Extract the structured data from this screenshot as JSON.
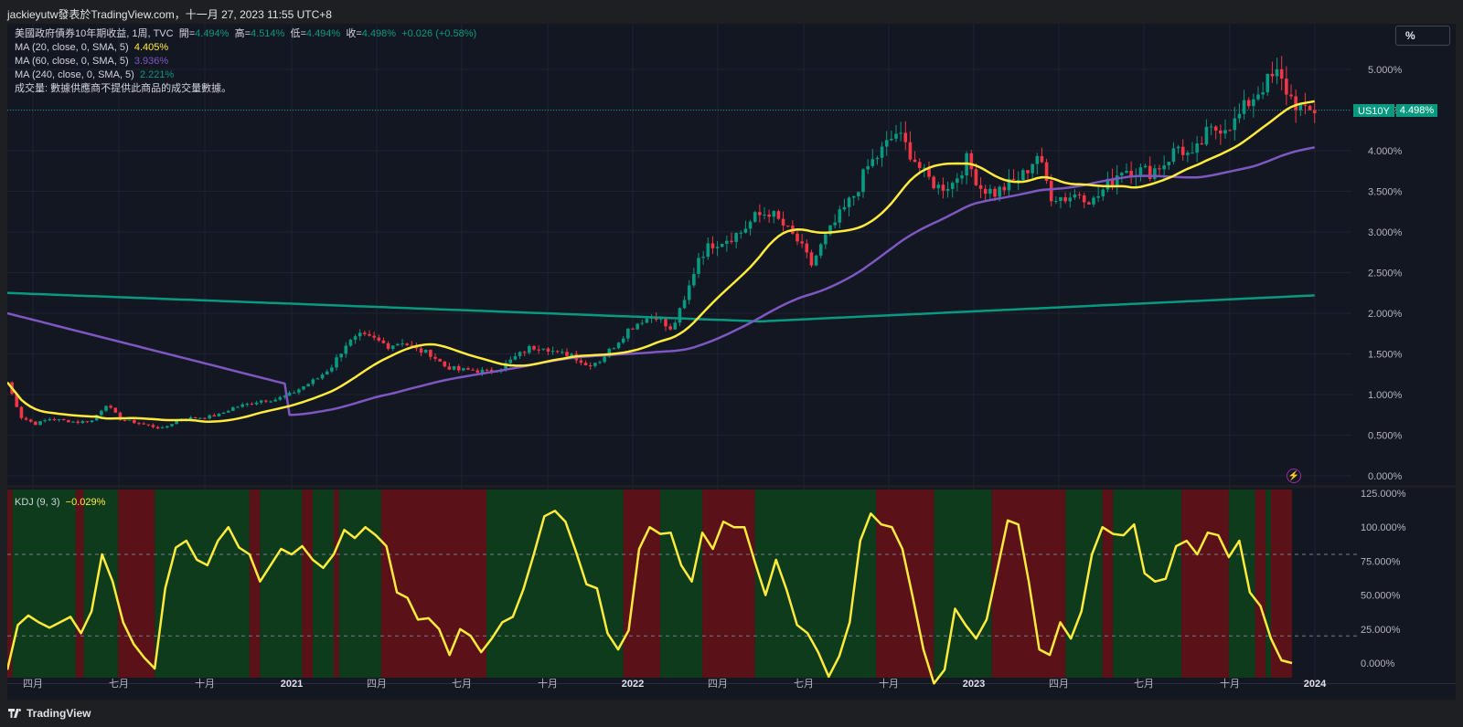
{
  "header": {
    "text": "jackieyutw發表於TradingView.com，十一月 27, 2023 11:55 UTC+8"
  },
  "footer": {
    "brand": "TradingView"
  },
  "toolbar": {
    "unit_label": "%"
  },
  "symbol": {
    "title": "美國政府債券10年期收益, 1周, TVC",
    "open_label": "開=",
    "open": "4.494%",
    "high_label": "高=",
    "high": "4.514%",
    "low_label": "低=",
    "low": "4.494%",
    "close_label": "收=",
    "close": "4.498%",
    "change": "+0.026 (+0.58%)",
    "ticker": "US10Y",
    "last": "4.498%"
  },
  "indicators": [
    {
      "label": "MA (20, close, 0, SMA, 5)",
      "value": "4.405%",
      "color": "#ffeb3b"
    },
    {
      "label": "MA (60, close, 0, SMA, 5)",
      "value": "3.936%",
      "color": "#7e57c2"
    },
    {
      "label": "MA (240, close, 0, SMA, 5)",
      "value": "2.221%",
      "color": "#089981"
    }
  ],
  "volume_note": "成交量: 數據供應商不提供此商品的成交量數據。",
  "kdj": {
    "label": "KDJ (9, 3)",
    "value": "−0.029%",
    "color": "#ffeb3b"
  },
  "colors": {
    "up": "#089981",
    "down": "#f23645",
    "background": "#131722",
    "grid": "#1f2330",
    "kdj_bull_bg": "#0e3b1b",
    "kdj_bear_bg": "#5a1218"
  },
  "chart_data": [
    {
      "type": "candlestick",
      "title": "美國政府債券10年期收益, 1周, TVC",
      "x_range": [
        "2020-03",
        "2023-12"
      ],
      "y_ticks": [
        "5.000%",
        "4.500%",
        "4.000%",
        "3.500%",
        "3.000%",
        "2.500%",
        "2.000%",
        "1.500%",
        "1.000%",
        "0.500%",
        "0.000%"
      ],
      "ylim": [
        0,
        5.0
      ],
      "x_ticks": [
        "四月",
        "七月",
        "十月",
        "2021",
        "四月",
        "七月",
        "十月",
        "2022",
        "四月",
        "七月",
        "十月",
        "2023",
        "四月",
        "七月",
        "十月",
        "2024"
      ],
      "close_path": [
        [
          0,
          1.15
        ],
        [
          3,
          0.72
        ],
        [
          6,
          0.64
        ],
        [
          9,
          0.7
        ],
        [
          12,
          0.68
        ],
        [
          15,
          0.66
        ],
        [
          18,
          0.68
        ],
        [
          21,
          0.88
        ],
        [
          24,
          0.7
        ],
        [
          27,
          0.66
        ],
        [
          30,
          0.62
        ],
        [
          33,
          0.58
        ],
        [
          36,
          0.68
        ],
        [
          39,
          0.71
        ],
        [
          42,
          0.72
        ],
        [
          45,
          0.75
        ],
        [
          48,
          0.84
        ],
        [
          51,
          0.88
        ],
        [
          54,
          0.93
        ],
        [
          57,
          0.94
        ],
        [
          60,
          1.0
        ],
        [
          63,
          1.1
        ],
        [
          66,
          1.2
        ],
        [
          69,
          1.35
        ],
        [
          72,
          1.62
        ],
        [
          75,
          1.72
        ],
        [
          78,
          1.68
        ],
        [
          81,
          1.6
        ],
        [
          84,
          1.65
        ],
        [
          87,
          1.55
        ],
        [
          90,
          1.5
        ],
        [
          93,
          1.35
        ],
        [
          96,
          1.3
        ],
        [
          99,
          1.3
        ],
        [
          102,
          1.28
        ],
        [
          105,
          1.33
        ],
        [
          108,
          1.46
        ],
        [
          111,
          1.57
        ],
        [
          114,
          1.6
        ],
        [
          117,
          1.5
        ],
        [
          120,
          1.5
        ],
        [
          123,
          1.36
        ],
        [
          126,
          1.42
        ],
        [
          129,
          1.6
        ],
        [
          132,
          1.8
        ],
        [
          135,
          1.92
        ],
        [
          138,
          1.97
        ],
        [
          141,
          1.78
        ],
        [
          144,
          2.14
        ],
        [
          147,
          2.7
        ],
        [
          150,
          2.86
        ],
        [
          153,
          2.92
        ],
        [
          156,
          3.0
        ],
        [
          159,
          3.18
        ],
        [
          162,
          3.25
        ],
        [
          165,
          3.08
        ],
        [
          168,
          2.89
        ],
        [
          171,
          2.6
        ],
        [
          174,
          2.93
        ],
        [
          177,
          3.2
        ],
        [
          180,
          3.45
        ],
        [
          183,
          3.8
        ],
        [
          186,
          4.0
        ],
        [
          189,
          4.22
        ],
        [
          192,
          3.98
        ],
        [
          195,
          3.7
        ],
        [
          198,
          3.55
        ],
        [
          201,
          3.6
        ],
        [
          204,
          3.88
        ],
        [
          207,
          3.55
        ],
        [
          210,
          3.48
        ],
        [
          213,
          3.58
        ],
        [
          216,
          3.7
        ],
        [
          219,
          3.95
        ],
        [
          222,
          3.45
        ],
        [
          225,
          3.42
        ],
        [
          228,
          3.48
        ],
        [
          231,
          3.38
        ],
        [
          234,
          3.58
        ],
        [
          237,
          3.78
        ],
        [
          240,
          3.76
        ],
        [
          243,
          3.74
        ],
        [
          246,
          3.85
        ],
        [
          249,
          4.05
        ],
        [
          252,
          3.9
        ],
        [
          255,
          4.2
        ],
        [
          258,
          4.3
        ],
        [
          261,
          4.35
        ],
        [
          264,
          4.6
        ],
        [
          267,
          4.8
        ],
        [
          270,
          4.93
        ],
        [
          273,
          4.65
        ],
        [
          276,
          4.45
        ],
        [
          278,
          4.498
        ]
      ]
    },
    {
      "type": "line",
      "title": "KDJ (9, 3)",
      "y_ticks": [
        "125.000%",
        "100.000%",
        "75.000%",
        "50.000%",
        "25.000%",
        "0.000%"
      ],
      "ylim": [
        0,
        125
      ],
      "j_path": [
        [
          0,
          -5
        ],
        [
          2,
          28
        ],
        [
          4,
          35
        ],
        [
          6,
          30
        ],
        [
          8,
          26
        ],
        [
          10,
          30
        ],
        [
          12,
          34
        ],
        [
          14,
          22
        ],
        [
          16,
          38
        ],
        [
          18,
          80
        ],
        [
          20,
          60
        ],
        [
          22,
          30
        ],
        [
          24,
          14
        ],
        [
          26,
          4
        ],
        [
          28,
          -4
        ],
        [
          30,
          55
        ],
        [
          32,
          85
        ],
        [
          34,
          90
        ],
        [
          36,
          76
        ],
        [
          38,
          72
        ],
        [
          40,
          90
        ],
        [
          42,
          100
        ],
        [
          44,
          85
        ],
        [
          46,
          80
        ],
        [
          48,
          60
        ],
        [
          50,
          72
        ],
        [
          52,
          84
        ],
        [
          54,
          80
        ],
        [
          56,
          86
        ],
        [
          58,
          76
        ],
        [
          60,
          70
        ],
        [
          62,
          80
        ],
        [
          64,
          98
        ],
        [
          66,
          92
        ],
        [
          68,
          100
        ],
        [
          70,
          94
        ],
        [
          72,
          86
        ],
        [
          74,
          52
        ],
        [
          76,
          48
        ],
        [
          78,
          32
        ],
        [
          80,
          33
        ],
        [
          82,
          25
        ],
        [
          84,
          6
        ],
        [
          86,
          25
        ],
        [
          88,
          20
        ],
        [
          90,
          8
        ],
        [
          92,
          18
        ],
        [
          94,
          30
        ],
        [
          96,
          34
        ],
        [
          98,
          54
        ],
        [
          100,
          80
        ],
        [
          102,
          108
        ],
        [
          104,
          112
        ],
        [
          106,
          104
        ],
        [
          108,
          82
        ],
        [
          110,
          58
        ],
        [
          112,
          55
        ],
        [
          114,
          22
        ],
        [
          116,
          10
        ],
        [
          118,
          24
        ],
        [
          120,
          84
        ],
        [
          122,
          100
        ],
        [
          124,
          95
        ],
        [
          126,
          96
        ],
        [
          128,
          72
        ],
        [
          130,
          60
        ],
        [
          132,
          96
        ],
        [
          134,
          84
        ],
        [
          136,
          104
        ],
        [
          138,
          100
        ],
        [
          140,
          100
        ],
        [
          142,
          74
        ],
        [
          144,
          50
        ],
        [
          146,
          76
        ],
        [
          148,
          54
        ],
        [
          150,
          28
        ],
        [
          152,
          22
        ],
        [
          154,
          8
        ],
        [
          156,
          -10
        ],
        [
          158,
          5
        ],
        [
          160,
          30
        ],
        [
          162,
          90
        ],
        [
          164,
          110
        ],
        [
          166,
          102
        ],
        [
          168,
          100
        ],
        [
          170,
          84
        ],
        [
          172,
          48
        ],
        [
          174,
          10
        ],
        [
          176,
          -15
        ],
        [
          178,
          -5
        ],
        [
          180,
          40
        ],
        [
          182,
          28
        ],
        [
          184,
          18
        ],
        [
          186,
          32
        ],
        [
          188,
          68
        ],
        [
          190,
          105
        ],
        [
          192,
          102
        ],
        [
          194,
          60
        ],
        [
          196,
          10
        ],
        [
          198,
          6
        ],
        [
          200,
          30
        ],
        [
          202,
          18
        ],
        [
          204,
          38
        ],
        [
          206,
          80
        ],
        [
          208,
          100
        ],
        [
          210,
          95
        ],
        [
          212,
          94
        ],
        [
          214,
          102
        ],
        [
          216,
          66
        ],
        [
          218,
          60
        ],
        [
          220,
          62
        ],
        [
          222,
          86
        ],
        [
          224,
          90
        ],
        [
          226,
          80
        ],
        [
          228,
          96
        ],
        [
          230,
          94
        ],
        [
          232,
          78
        ],
        [
          234,
          90
        ],
        [
          236,
          52
        ],
        [
          238,
          42
        ],
        [
          240,
          18
        ],
        [
          242,
          2
        ],
        [
          244,
          -0.029
        ]
      ],
      "dashed_levels": [
        80,
        20
      ]
    }
  ]
}
